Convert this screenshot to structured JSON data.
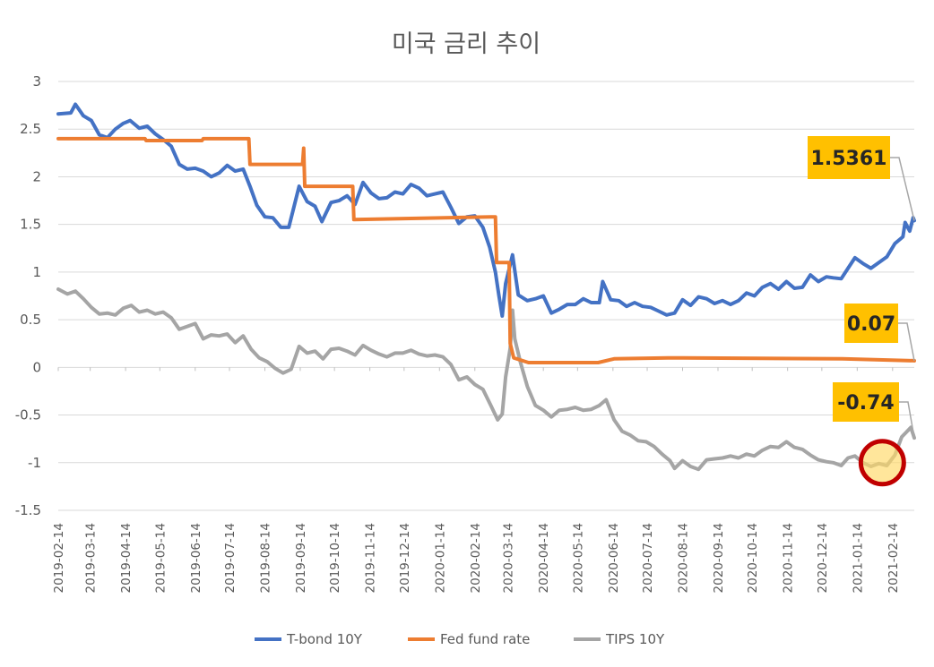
{
  "chart_data": {
    "type": "line",
    "title": "미국 금리 추이",
    "xlabel": "",
    "ylabel": "",
    "ylim": [
      -1.5,
      3
    ],
    "yticks": [
      "3",
      "2.5",
      "2",
      "1.5",
      "1",
      "0.5",
      "0",
      "-0.5",
      "-1",
      "-1.5"
    ],
    "x_tick_labels": [
      "2019-02-14",
      "2019-03-14",
      "2019-04-14",
      "2019-05-14",
      "2019-06-14",
      "2019-07-14",
      "2019-08-14",
      "2019-09-14",
      "2019-10-14",
      "2019-11-14",
      "2019-12-14",
      "2020-01-14",
      "2020-02-14",
      "2020-03-14",
      "2020-04-14",
      "2020-05-14",
      "2020-06-14",
      "2020-07-14",
      "2020-08-14",
      "2020-09-14",
      "2020-10-14",
      "2020-11-14",
      "2020-12-14",
      "2021-01-14",
      "2021-02-14"
    ],
    "x_range": [
      "2019-02-14",
      "2021-03-05"
    ],
    "grid": "horizontal",
    "legend_position": "bottom",
    "series": [
      {
        "name": "T-bond 10Y",
        "color": "#4472C4",
        "points": [
          [
            "2019-02-14",
            2.66
          ],
          [
            "2019-02-25",
            2.67
          ],
          [
            "2019-03-01",
            2.76
          ],
          [
            "2019-03-08",
            2.64
          ],
          [
            "2019-03-15",
            2.59
          ],
          [
            "2019-03-22",
            2.44
          ],
          [
            "2019-03-29",
            2.41
          ],
          [
            "2019-04-05",
            2.5
          ],
          [
            "2019-04-12",
            2.56
          ],
          [
            "2019-04-18",
            2.59
          ],
          [
            "2019-04-26",
            2.51
          ],
          [
            "2019-05-03",
            2.53
          ],
          [
            "2019-05-10",
            2.45
          ],
          [
            "2019-05-17",
            2.39
          ],
          [
            "2019-05-24",
            2.32
          ],
          [
            "2019-05-31",
            2.13
          ],
          [
            "2019-06-07",
            2.08
          ],
          [
            "2019-06-14",
            2.09
          ],
          [
            "2019-06-21",
            2.06
          ],
          [
            "2019-06-28",
            2.0
          ],
          [
            "2019-07-05",
            2.04
          ],
          [
            "2019-07-12",
            2.12
          ],
          [
            "2019-07-19",
            2.06
          ],
          [
            "2019-07-26",
            2.08
          ],
          [
            "2019-08-01",
            1.9
          ],
          [
            "2019-08-07",
            1.7
          ],
          [
            "2019-08-14",
            1.58
          ],
          [
            "2019-08-21",
            1.57
          ],
          [
            "2019-08-28",
            1.47
          ],
          [
            "2019-09-04",
            1.47
          ],
          [
            "2019-09-13",
            1.9
          ],
          [
            "2019-09-20",
            1.74
          ],
          [
            "2019-09-27",
            1.69
          ],
          [
            "2019-10-03",
            1.53
          ],
          [
            "2019-10-11",
            1.73
          ],
          [
            "2019-10-18",
            1.75
          ],
          [
            "2019-10-25",
            1.8
          ],
          [
            "2019-11-01",
            1.71
          ],
          [
            "2019-11-08",
            1.94
          ],
          [
            "2019-11-15",
            1.83
          ],
          [
            "2019-11-22",
            1.77
          ],
          [
            "2019-11-29",
            1.78
          ],
          [
            "2019-12-06",
            1.84
          ],
          [
            "2019-12-13",
            1.82
          ],
          [
            "2019-12-20",
            1.92
          ],
          [
            "2019-12-27",
            1.88
          ],
          [
            "2020-01-03",
            1.8
          ],
          [
            "2020-01-10",
            1.82
          ],
          [
            "2020-01-17",
            1.84
          ],
          [
            "2020-01-24",
            1.68
          ],
          [
            "2020-01-31",
            1.51
          ],
          [
            "2020-02-07",
            1.58
          ],
          [
            "2020-02-14",
            1.59
          ],
          [
            "2020-02-21",
            1.47
          ],
          [
            "2020-02-27",
            1.26
          ],
          [
            "2020-03-03",
            1.0
          ],
          [
            "2020-03-06",
            0.76
          ],
          [
            "2020-03-09",
            0.54
          ],
          [
            "2020-03-12",
            0.88
          ],
          [
            "2020-03-18",
            1.18
          ],
          [
            "2020-03-23",
            0.76
          ],
          [
            "2020-03-31",
            0.7
          ],
          [
            "2020-04-07",
            0.72
          ],
          [
            "2020-04-14",
            0.75
          ],
          [
            "2020-04-21",
            0.57
          ],
          [
            "2020-04-28",
            0.61
          ],
          [
            "2020-05-05",
            0.66
          ],
          [
            "2020-05-12",
            0.66
          ],
          [
            "2020-05-19",
            0.72
          ],
          [
            "2020-05-26",
            0.68
          ],
          [
            "2020-06-02",
            0.68
          ],
          [
            "2020-06-05",
            0.9
          ],
          [
            "2020-06-12",
            0.71
          ],
          [
            "2020-06-19",
            0.7
          ],
          [
            "2020-06-26",
            0.64
          ],
          [
            "2020-07-03",
            0.68
          ],
          [
            "2020-07-10",
            0.64
          ],
          [
            "2020-07-17",
            0.63
          ],
          [
            "2020-07-24",
            0.59
          ],
          [
            "2020-07-31",
            0.55
          ],
          [
            "2020-08-07",
            0.57
          ],
          [
            "2020-08-14",
            0.71
          ],
          [
            "2020-08-21",
            0.65
          ],
          [
            "2020-08-28",
            0.74
          ],
          [
            "2020-09-04",
            0.72
          ],
          [
            "2020-09-11",
            0.67
          ],
          [
            "2020-09-18",
            0.7
          ],
          [
            "2020-09-25",
            0.66
          ],
          [
            "2020-10-02",
            0.7
          ],
          [
            "2020-10-09",
            0.78
          ],
          [
            "2020-10-16",
            0.75
          ],
          [
            "2020-10-23",
            0.84
          ],
          [
            "2020-10-30",
            0.88
          ],
          [
            "2020-11-06",
            0.82
          ],
          [
            "2020-11-13",
            0.9
          ],
          [
            "2020-11-20",
            0.83
          ],
          [
            "2020-11-27",
            0.84
          ],
          [
            "2020-12-04",
            0.97
          ],
          [
            "2020-12-11",
            0.9
          ],
          [
            "2020-12-18",
            0.95
          ],
          [
            "2020-12-24",
            0.94
          ],
          [
            "2020-12-31",
            0.93
          ],
          [
            "2021-01-06",
            1.04
          ],
          [
            "2021-01-12",
            1.15
          ],
          [
            "2021-01-19",
            1.09
          ],
          [
            "2021-01-26",
            1.04
          ],
          [
            "2021-02-02",
            1.1
          ],
          [
            "2021-02-09",
            1.16
          ],
          [
            "2021-02-16",
            1.3
          ],
          [
            "2021-02-23",
            1.37
          ],
          [
            "2021-02-25",
            1.52
          ],
          [
            "2021-03-01",
            1.43
          ],
          [
            "2021-03-04",
            1.57
          ],
          [
            "2021-03-05",
            1.54
          ]
        ]
      },
      {
        "name": "Fed fund rate",
        "color": "#ED7D31",
        "points": [
          [
            "2019-02-14",
            2.4
          ],
          [
            "2019-05-01",
            2.4
          ],
          [
            "2019-05-02",
            2.38
          ],
          [
            "2019-06-20",
            2.38
          ],
          [
            "2019-06-21",
            2.4
          ],
          [
            "2019-07-31",
            2.4
          ],
          [
            "2019-08-01",
            2.13
          ],
          [
            "2019-09-16",
            2.13
          ],
          [
            "2019-09-17",
            2.3
          ],
          [
            "2019-09-18",
            1.9
          ],
          [
            "2019-10-30",
            1.9
          ],
          [
            "2019-10-31",
            1.55
          ],
          [
            "2020-02-28",
            1.58
          ],
          [
            "2020-03-03",
            1.58
          ],
          [
            "2020-03-04",
            1.1
          ],
          [
            "2020-03-15",
            1.1
          ],
          [
            "2020-03-16",
            0.25
          ],
          [
            "2020-03-19",
            0.1
          ],
          [
            "2020-04-01",
            0.05
          ],
          [
            "2020-06-01",
            0.05
          ],
          [
            "2020-06-15",
            0.09
          ],
          [
            "2020-08-01",
            0.1
          ],
          [
            "2021-01-01",
            0.09
          ],
          [
            "2021-03-05",
            0.07
          ]
        ]
      },
      {
        "name": "TIPS 10Y",
        "color": "#A5A5A5",
        "points": [
          [
            "2019-02-14",
            0.82
          ],
          [
            "2019-02-22",
            0.77
          ],
          [
            "2019-03-01",
            0.8
          ],
          [
            "2019-03-08",
            0.72
          ],
          [
            "2019-03-15",
            0.63
          ],
          [
            "2019-03-22",
            0.56
          ],
          [
            "2019-03-29",
            0.57
          ],
          [
            "2019-04-05",
            0.55
          ],
          [
            "2019-04-12",
            0.62
          ],
          [
            "2019-04-19",
            0.65
          ],
          [
            "2019-04-26",
            0.58
          ],
          [
            "2019-05-03",
            0.6
          ],
          [
            "2019-05-10",
            0.56
          ],
          [
            "2019-05-17",
            0.58
          ],
          [
            "2019-05-24",
            0.52
          ],
          [
            "2019-05-31",
            0.4
          ],
          [
            "2019-06-07",
            0.43
          ],
          [
            "2019-06-14",
            0.46
          ],
          [
            "2019-06-21",
            0.3
          ],
          [
            "2019-06-28",
            0.34
          ],
          [
            "2019-07-05",
            0.33
          ],
          [
            "2019-07-12",
            0.35
          ],
          [
            "2019-07-19",
            0.26
          ],
          [
            "2019-07-26",
            0.33
          ],
          [
            "2019-08-02",
            0.19
          ],
          [
            "2019-08-09",
            0.1
          ],
          [
            "2019-08-16",
            0.06
          ],
          [
            "2019-08-23",
            -0.01
          ],
          [
            "2019-08-30",
            -0.06
          ],
          [
            "2019-09-06",
            -0.02
          ],
          [
            "2019-09-13",
            0.22
          ],
          [
            "2019-09-20",
            0.15
          ],
          [
            "2019-09-27",
            0.17
          ],
          [
            "2019-10-04",
            0.09
          ],
          [
            "2019-10-11",
            0.19
          ],
          [
            "2019-10-18",
            0.2
          ],
          [
            "2019-10-25",
            0.17
          ],
          [
            "2019-11-01",
            0.13
          ],
          [
            "2019-11-08",
            0.23
          ],
          [
            "2019-11-15",
            0.18
          ],
          [
            "2019-11-22",
            0.14
          ],
          [
            "2019-11-29",
            0.11
          ],
          [
            "2019-12-06",
            0.15
          ],
          [
            "2019-12-13",
            0.15
          ],
          [
            "2019-12-20",
            0.18
          ],
          [
            "2019-12-27",
            0.14
          ],
          [
            "2020-01-03",
            0.12
          ],
          [
            "2020-01-10",
            0.13
          ],
          [
            "2020-01-17",
            0.11
          ],
          [
            "2020-01-24",
            0.03
          ],
          [
            "2020-01-31",
            -0.13
          ],
          [
            "2020-02-07",
            -0.1
          ],
          [
            "2020-02-14",
            -0.18
          ],
          [
            "2020-02-21",
            -0.23
          ],
          [
            "2020-02-28",
            -0.4
          ],
          [
            "2020-03-05",
            -0.55
          ],
          [
            "2020-03-09",
            -0.49
          ],
          [
            "2020-03-12",
            -0.1
          ],
          [
            "2020-03-16",
            0.2
          ],
          [
            "2020-03-18",
            0.6
          ],
          [
            "2020-03-20",
            0.3
          ],
          [
            "2020-03-25",
            0.05
          ],
          [
            "2020-03-31",
            -0.2
          ],
          [
            "2020-04-07",
            -0.4
          ],
          [
            "2020-04-14",
            -0.45
          ],
          [
            "2020-04-21",
            -0.52
          ],
          [
            "2020-04-28",
            -0.45
          ],
          [
            "2020-05-05",
            -0.44
          ],
          [
            "2020-05-12",
            -0.42
          ],
          [
            "2020-05-19",
            -0.45
          ],
          [
            "2020-05-26",
            -0.44
          ],
          [
            "2020-06-02",
            -0.4
          ],
          [
            "2020-06-08",
            -0.34
          ],
          [
            "2020-06-15",
            -0.55
          ],
          [
            "2020-06-22",
            -0.67
          ],
          [
            "2020-06-29",
            -0.71
          ],
          [
            "2020-07-06",
            -0.77
          ],
          [
            "2020-07-13",
            -0.78
          ],
          [
            "2020-07-20",
            -0.83
          ],
          [
            "2020-07-27",
            -0.91
          ],
          [
            "2020-08-03",
            -0.98
          ],
          [
            "2020-08-07",
            -1.06
          ],
          [
            "2020-08-14",
            -0.98
          ],
          [
            "2020-08-21",
            -1.04
          ],
          [
            "2020-08-28",
            -1.07
          ],
          [
            "2020-09-04",
            -0.97
          ],
          [
            "2020-09-11",
            -0.96
          ],
          [
            "2020-09-18",
            -0.95
          ],
          [
            "2020-09-25",
            -0.93
          ],
          [
            "2020-10-02",
            -0.95
          ],
          [
            "2020-10-09",
            -0.91
          ],
          [
            "2020-10-16",
            -0.93
          ],
          [
            "2020-10-23",
            -0.87
          ],
          [
            "2020-10-30",
            -0.83
          ],
          [
            "2020-11-06",
            -0.84
          ],
          [
            "2020-11-13",
            -0.78
          ],
          [
            "2020-11-20",
            -0.84
          ],
          [
            "2020-11-27",
            -0.86
          ],
          [
            "2020-12-04",
            -0.92
          ],
          [
            "2020-12-11",
            -0.97
          ],
          [
            "2020-12-18",
            -0.99
          ],
          [
            "2020-12-24",
            -1.0
          ],
          [
            "2020-12-31",
            -1.03
          ],
          [
            "2021-01-06",
            -0.95
          ],
          [
            "2021-01-12",
            -0.93
          ],
          [
            "2021-01-19",
            -1.0
          ],
          [
            "2021-01-26",
            -1.04
          ],
          [
            "2021-02-02",
            -1.01
          ],
          [
            "2021-02-09",
            -1.03
          ],
          [
            "2021-02-16",
            -0.92
          ],
          [
            "2021-02-22",
            -0.73
          ],
          [
            "2021-02-26",
            -0.68
          ],
          [
            "2021-03-02",
            -0.63
          ],
          [
            "2021-03-05",
            -0.74
          ]
        ]
      }
    ],
    "callouts": [
      {
        "label": "1.5361",
        "series": "T-bond 10Y",
        "date": "2021-03-05",
        "value": 1.54,
        "fill": "#FFC000"
      },
      {
        "label": "0.07",
        "series": "Fed fund rate",
        "date": "2021-03-05",
        "value": 0.07,
        "fill": "#FFC000"
      },
      {
        "label": "-0.74",
        "series": "TIPS 10Y",
        "date": "2021-03-05",
        "value": -0.74,
        "fill": "#FFC000"
      }
    ],
    "highlight": {
      "date": "2021-02-05",
      "value": -1.0,
      "stroke": "#C00000",
      "fill": "#FFD966"
    }
  }
}
